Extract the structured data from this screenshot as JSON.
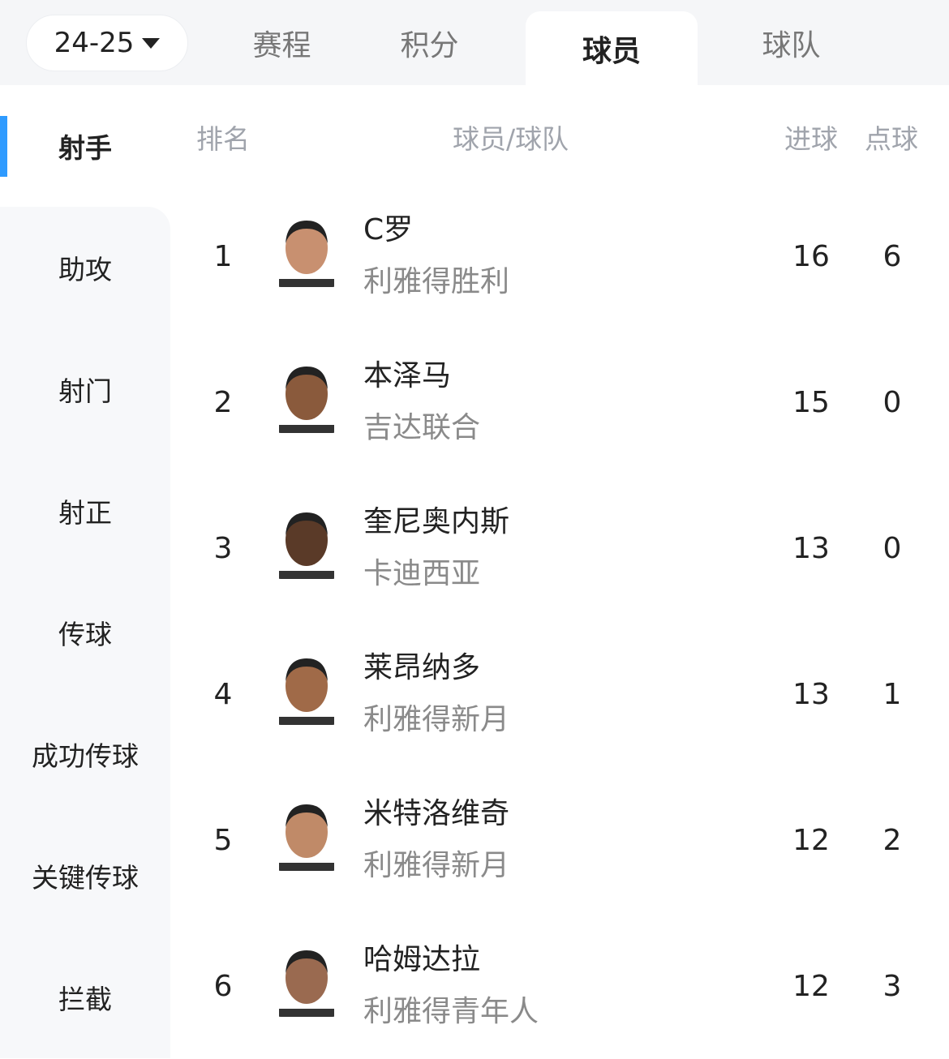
{
  "header": {
    "season": "24-25",
    "tabs": [
      "赛程",
      "积分",
      "球员",
      "球队"
    ],
    "active_tab": "球员"
  },
  "sidebar": {
    "items": [
      "射手",
      "助攻",
      "射门",
      "射正",
      "传球",
      "成功传球",
      "关键传球",
      "拦截"
    ],
    "active": "射手",
    "accent": "#2f9bff"
  },
  "table": {
    "columns": [
      "排名",
      "球员/球队",
      "进球",
      "点球"
    ],
    "rows": [
      {
        "rank": "1",
        "name": "C罗",
        "team": "利雅得胜利",
        "goals": "16",
        "penalties": "6"
      },
      {
        "rank": "2",
        "name": "本泽马",
        "team": "吉达联合",
        "goals": "15",
        "penalties": "0"
      },
      {
        "rank": "3",
        "name": "奎尼奥内斯",
        "team": "卡迪西亚",
        "goals": "13",
        "penalties": "0"
      },
      {
        "rank": "4",
        "name": "莱昂纳多",
        "team": "利雅得新月",
        "goals": "13",
        "penalties": "1"
      },
      {
        "rank": "5",
        "name": "米特洛维奇",
        "team": "利雅得新月",
        "goals": "12",
        "penalties": "2"
      },
      {
        "rank": "6",
        "name": "哈姆达拉",
        "team": "利雅得青年人",
        "goals": "12",
        "penalties": "3"
      }
    ]
  }
}
